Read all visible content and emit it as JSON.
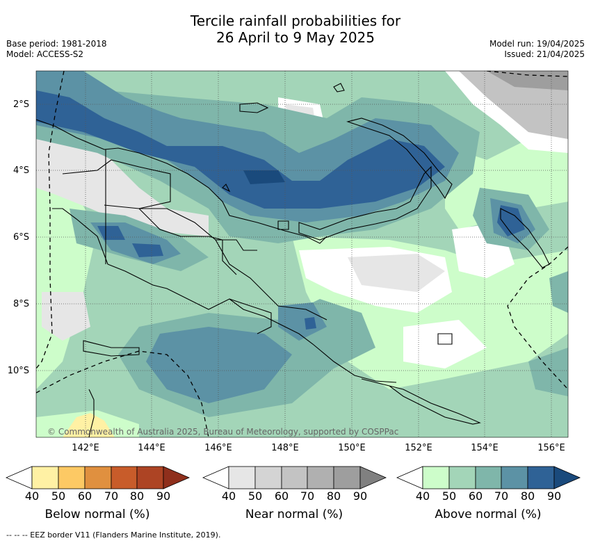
{
  "header": {
    "title_line1": "Tercile rainfall probabilities for",
    "title_line2": "26 April to 9 May 2025",
    "base_period": "Base period: 1981-2018",
    "model": "Model: ACCESS-S2",
    "model_run": "Model run: 19/04/2025",
    "issued": "Issued: 21/04/2025"
  },
  "map": {
    "copyright": "© Commonwealth of Australia 2025, Bureau of Meteorology, supported by COSPPac",
    "lat_ticks": [
      "2°S",
      "4°S",
      "6°S",
      "8°S",
      "10°S"
    ],
    "lon_ticks": [
      "142°E",
      "144°E",
      "146°E",
      "148°E",
      "150°E",
      "152°E",
      "154°E",
      "156°E"
    ],
    "colors": {
      "land_outline": "#000000",
      "grid": "#555555"
    }
  },
  "legend": {
    "ticks": [
      "40",
      "50",
      "60",
      "70",
      "80",
      "90"
    ],
    "below": {
      "label": "Below normal (%)",
      "colors": [
        "#ffffff",
        "#fff1a4",
        "#fdc964",
        "#e0903f",
        "#c85c2a",
        "#ad4424",
        "#8f2f1c"
      ]
    },
    "near": {
      "label": "Near normal (%)",
      "colors": [
        "#ffffff",
        "#e6e6e6",
        "#d4d4d4",
        "#c3c3c3",
        "#b0b0b0",
        "#9e9e9e",
        "#808080"
      ]
    },
    "above": {
      "label": "Above normal (%)",
      "colors": [
        "#ffffff",
        "#cdfdca",
        "#a3d5b8",
        "#7fb6aa",
        "#5c92a5",
        "#2f6296",
        "#1a4a7c"
      ]
    }
  },
  "footnote": "--  --  -- EEZ border V11 (Flanders Marine Institute, 2019)."
}
